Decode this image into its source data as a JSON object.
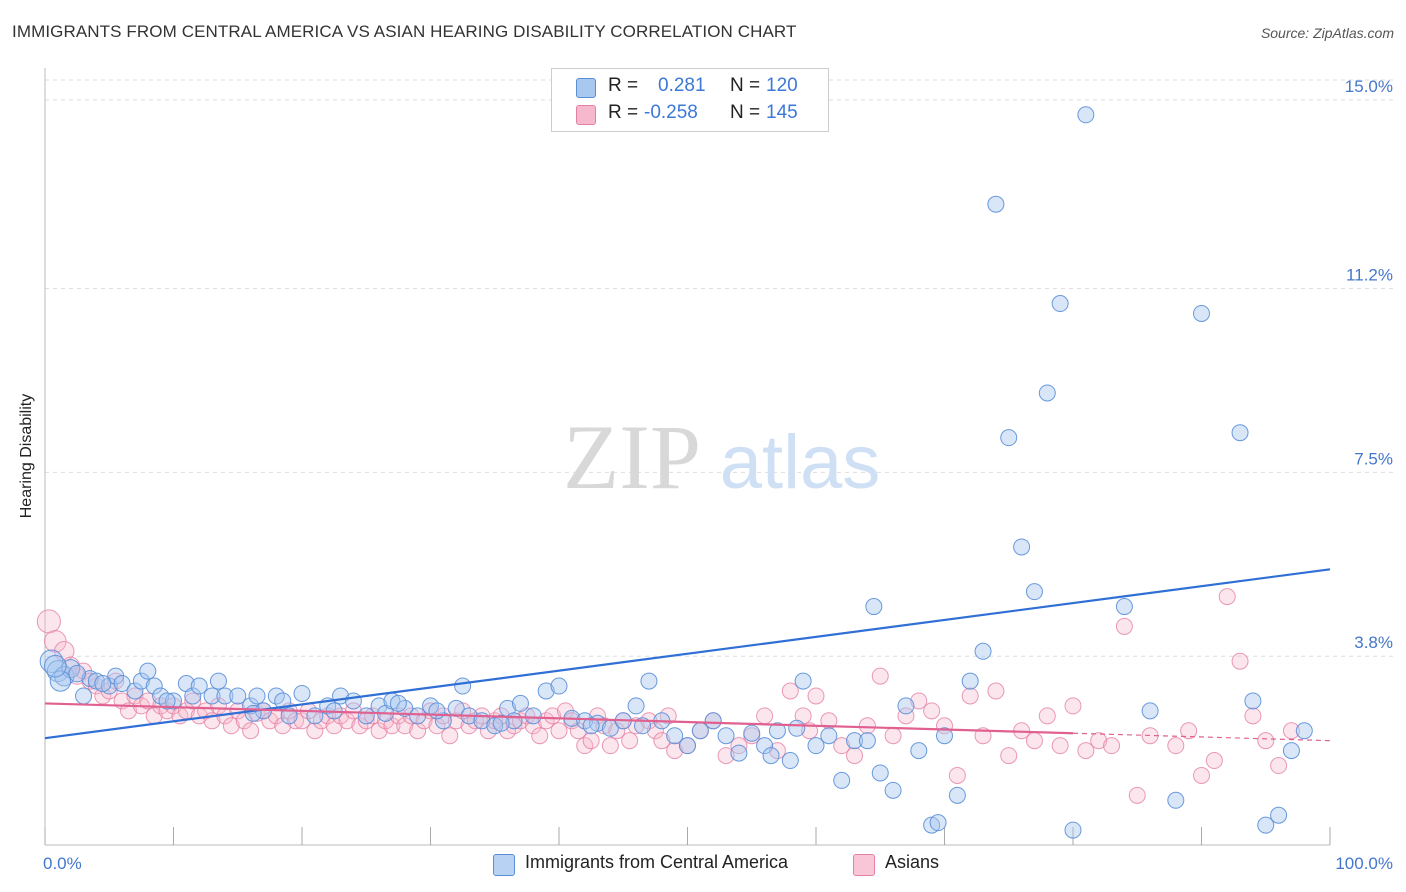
{
  "title": "IMMIGRANTS FROM CENTRAL AMERICA VS ASIAN HEARING DISABILITY CORRELATION CHART",
  "source": "Source: ZipAtlas.com",
  "watermark": {
    "zip": "ZIP",
    "atlas": "atlas"
  },
  "legend": {
    "series1": {
      "r_label": "R =",
      "r_value": "0.281",
      "n_label": "N =",
      "n_value": "120"
    },
    "series2": {
      "r_label": "R =",
      "r_value": "-0.258",
      "n_label": "N =",
      "n_value": "145"
    }
  },
  "colors": {
    "blue_fill": "#a8c8f0",
    "blue_stroke": "#5a8fd8",
    "blue_line": "#2f6fd6",
    "pink_fill": "#f5b8cc",
    "pink_stroke": "#e580a5",
    "pink_line": "#e0608f",
    "tick_text": "#4477cc",
    "grid": "#dddddd"
  },
  "chart_data": {
    "type": "scatter",
    "title": "IMMIGRANTS FROM CENTRAL AMERICA VS ASIAN HEARING DISABILITY CORRELATION CHART",
    "xlabel": "",
    "ylabel": "Hearing Disability",
    "x_tick_labels": [
      "0.0%",
      "100.0%"
    ],
    "y_tick_labels": [
      "3.8%",
      "7.5%",
      "11.2%",
      "15.0%"
    ],
    "y_ticks": [
      3.8,
      7.5,
      11.2,
      15.0
    ],
    "xlim": [
      0,
      100
    ],
    "ylim": [
      0,
      15.4
    ],
    "grid": true,
    "legend_position": "top-center",
    "series": [
      {
        "name": "Immigrants from Central America",
        "color": "#5a8fd8",
        "trend": {
          "x": [
            0,
            100
          ],
          "y": [
            2.15,
            5.55
          ]
        },
        "points": [
          [
            0.5,
            3.7
          ],
          [
            1,
            3.5
          ],
          [
            1.5,
            3.4
          ],
          [
            2,
            3.55
          ],
          [
            3,
            3.0
          ],
          [
            3.5,
            3.35
          ],
          [
            4,
            3.3
          ],
          [
            5,
            3.2
          ],
          [
            5.5,
            3.4
          ],
          [
            6,
            3.25
          ],
          [
            7,
            3.1
          ],
          [
            7.5,
            3.3
          ],
          [
            8,
            3.5
          ],
          [
            8.5,
            3.2
          ],
          [
            9,
            3.0
          ],
          [
            10,
            2.9
          ],
          [
            11,
            3.25
          ],
          [
            11.5,
            3.0
          ],
          [
            12,
            3.2
          ],
          [
            13,
            3.0
          ],
          [
            13.5,
            3.3
          ],
          [
            14,
            3.0
          ],
          [
            15,
            3.0
          ],
          [
            16,
            2.8
          ],
          [
            16.5,
            3.0
          ],
          [
            17,
            2.7
          ],
          [
            18,
            3.0
          ],
          [
            18.5,
            2.9
          ],
          [
            19,
            2.6
          ],
          [
            20,
            3.05
          ],
          [
            21,
            2.6
          ],
          [
            22,
            2.8
          ],
          [
            23,
            3.0
          ],
          [
            24,
            2.9
          ],
          [
            25,
            2.6
          ],
          [
            26,
            2.8
          ],
          [
            26.5,
            2.65
          ],
          [
            27,
            2.9
          ],
          [
            28,
            2.75
          ],
          [
            29,
            2.6
          ],
          [
            30,
            2.8
          ],
          [
            31,
            2.5
          ],
          [
            32,
            2.75
          ],
          [
            32.5,
            3.2
          ],
          [
            33,
            2.6
          ],
          [
            34,
            2.5
          ],
          [
            35,
            2.4
          ],
          [
            36,
            2.75
          ],
          [
            36.5,
            2.5
          ],
          [
            37,
            2.85
          ],
          [
            38,
            2.6
          ],
          [
            39,
            3.1
          ],
          [
            40,
            3.2
          ],
          [
            41,
            2.55
          ],
          [
            42,
            2.5
          ],
          [
            43,
            2.45
          ],
          [
            44,
            2.35
          ],
          [
            45,
            2.5
          ],
          [
            46,
            2.8
          ],
          [
            46.5,
            2.4
          ],
          [
            47,
            3.3
          ],
          [
            48,
            2.5
          ],
          [
            49,
            2.2
          ],
          [
            50,
            2.0
          ],
          [
            51,
            2.3
          ],
          [
            52,
            2.5
          ],
          [
            53,
            2.2
          ],
          [
            54,
            1.85
          ],
          [
            55,
            2.25
          ],
          [
            56,
            2.0
          ],
          [
            56.5,
            1.8
          ],
          [
            57,
            2.3
          ],
          [
            58,
            1.7
          ],
          [
            59,
            3.3
          ],
          [
            60,
            2.0
          ],
          [
            61,
            2.2
          ],
          [
            62,
            1.3
          ],
          [
            63,
            2.1
          ],
          [
            64,
            2.1
          ],
          [
            65,
            1.45
          ],
          [
            66,
            1.1
          ],
          [
            67,
            2.8
          ],
          [
            68,
            1.9
          ],
          [
            69,
            0.4
          ],
          [
            70,
            2.2
          ],
          [
            71,
            1.0
          ],
          [
            72,
            3.3
          ],
          [
            73,
            3.9
          ],
          [
            74,
            12.9
          ],
          [
            75,
            8.2
          ],
          [
            76,
            6.0
          ],
          [
            77,
            5.1
          ],
          [
            78,
            9.1
          ],
          [
            79,
            10.9
          ],
          [
            80,
            0.3
          ],
          [
            81,
            14.7
          ],
          [
            84,
            4.8
          ],
          [
            86,
            2.7
          ],
          [
            88,
            0.9
          ],
          [
            90,
            10.7
          ],
          [
            93,
            8.3
          ],
          [
            94,
            2.9
          ],
          [
            95,
            0.4
          ],
          [
            96,
            0.6
          ],
          [
            97,
            1.9
          ],
          [
            98,
            2.3
          ],
          [
            64.5,
            4.8
          ],
          [
            58.5,
            2.35
          ],
          [
            69.5,
            0.45
          ],
          [
            42.5,
            2.4
          ],
          [
            35.5,
            2.45
          ],
          [
            27.5,
            2.85
          ],
          [
            16.2,
            2.65
          ],
          [
            9.5,
            2.9
          ],
          [
            4.5,
            3.25
          ],
          [
            2.5,
            3.45
          ],
          [
            1.2,
            3.3
          ],
          [
            0.8,
            3.6
          ],
          [
            22.5,
            2.7
          ],
          [
            30.5,
            2.7
          ]
        ]
      },
      {
        "name": "Asians",
        "color": "#e580a5",
        "trend": {
          "x": [
            0,
            80
          ],
          "y": [
            2.85,
            2.25
          ]
        },
        "trend_dashed": {
          "x": [
            80,
            100
          ],
          "y": [
            2.25,
            2.1
          ]
        },
        "points": [
          [
            0.3,
            4.5
          ],
          [
            0.8,
            4.1
          ],
          [
            1.5,
            3.9
          ],
          [
            2,
            3.6
          ],
          [
            2.5,
            3.4
          ],
          [
            3,
            3.5
          ],
          [
            3.5,
            3.3
          ],
          [
            4,
            3.2
          ],
          [
            4.5,
            3.0
          ],
          [
            5,
            3.1
          ],
          [
            5.5,
            3.3
          ],
          [
            6,
            2.9
          ],
          [
            6.5,
            2.7
          ],
          [
            7,
            3.0
          ],
          [
            7.5,
            2.8
          ],
          [
            8,
            2.9
          ],
          [
            8.5,
            2.6
          ],
          [
            9,
            2.8
          ],
          [
            9.5,
            2.7
          ],
          [
            10,
            2.8
          ],
          [
            10.5,
            2.6
          ],
          [
            11,
            2.7
          ],
          [
            11.5,
            2.9
          ],
          [
            12,
            2.6
          ],
          [
            12.5,
            2.7
          ],
          [
            13,
            2.5
          ],
          [
            13.5,
            2.8
          ],
          [
            14,
            2.6
          ],
          [
            14.5,
            2.4
          ],
          [
            15,
            2.7
          ],
          [
            15.5,
            2.5
          ],
          [
            16,
            2.3
          ],
          [
            16.5,
            2.65
          ],
          [
            17,
            2.7
          ],
          [
            17.5,
            2.5
          ],
          [
            18,
            2.6
          ],
          [
            18.5,
            2.4
          ],
          [
            19,
            2.7
          ],
          [
            19.5,
            2.5
          ],
          [
            20,
            2.5
          ],
          [
            20.5,
            2.7
          ],
          [
            21,
            2.3
          ],
          [
            21.5,
            2.5
          ],
          [
            22,
            2.6
          ],
          [
            22.5,
            2.4
          ],
          [
            23,
            2.6
          ],
          [
            23.5,
            2.5
          ],
          [
            24,
            2.7
          ],
          [
            24.5,
            2.4
          ],
          [
            25,
            2.5
          ],
          [
            25.5,
            2.6
          ],
          [
            26,
            2.3
          ],
          [
            26.5,
            2.5
          ],
          [
            27,
            2.4
          ],
          [
            27.5,
            2.6
          ],
          [
            28,
            2.4
          ],
          [
            28.5,
            2.6
          ],
          [
            29,
            2.3
          ],
          [
            29.5,
            2.5
          ],
          [
            30,
            2.7
          ],
          [
            30.5,
            2.4
          ],
          [
            31,
            2.6
          ],
          [
            31.5,
            2.2
          ],
          [
            32,
            2.5
          ],
          [
            32.5,
            2.7
          ],
          [
            33,
            2.4
          ],
          [
            33.5,
            2.5
          ],
          [
            34,
            2.6
          ],
          [
            34.5,
            2.3
          ],
          [
            35,
            2.5
          ],
          [
            35.5,
            2.6
          ],
          [
            36,
            2.3
          ],
          [
            36.5,
            2.4
          ],
          [
            37,
            2.5
          ],
          [
            37.5,
            2.6
          ],
          [
            38,
            2.4
          ],
          [
            38.5,
            2.2
          ],
          [
            39,
            2.5
          ],
          [
            39.5,
            2.6
          ],
          [
            40,
            2.3
          ],
          [
            40.5,
            2.7
          ],
          [
            41,
            2.5
          ],
          [
            41.5,
            2.3
          ],
          [
            42,
            2.0
          ],
          [
            42.5,
            2.1
          ],
          [
            43,
            2.6
          ],
          [
            43.5,
            2.4
          ],
          [
            44,
            2.0
          ],
          [
            44.5,
            2.3
          ],
          [
            45,
            2.5
          ],
          [
            45.5,
            2.1
          ],
          [
            46,
            2.4
          ],
          [
            47,
            2.5
          ],
          [
            47.5,
            2.3
          ],
          [
            48,
            2.1
          ],
          [
            48.5,
            2.6
          ],
          [
            49,
            1.9
          ],
          [
            50,
            2.0
          ],
          [
            51,
            2.3
          ],
          [
            52,
            2.5
          ],
          [
            53,
            1.8
          ],
          [
            54,
            2.0
          ],
          [
            55,
            2.2
          ],
          [
            56,
            2.6
          ],
          [
            57,
            1.9
          ],
          [
            58,
            3.1
          ],
          [
            59,
            2.6
          ],
          [
            59.5,
            2.3
          ],
          [
            60,
            3.0
          ],
          [
            61,
            2.5
          ],
          [
            62,
            2.0
          ],
          [
            63,
            1.8
          ],
          [
            64,
            2.4
          ],
          [
            65,
            3.4
          ],
          [
            66,
            2.2
          ],
          [
            67,
            2.6
          ],
          [
            68,
            2.9
          ],
          [
            69,
            2.7
          ],
          [
            70,
            2.4
          ],
          [
            71,
            1.4
          ],
          [
            72,
            3.0
          ],
          [
            73,
            2.2
          ],
          [
            74,
            3.1
          ],
          [
            75,
            1.8
          ],
          [
            76,
            2.3
          ],
          [
            77,
            2.1
          ],
          [
            78,
            2.6
          ],
          [
            79,
            2.0
          ],
          [
            80,
            2.8
          ],
          [
            81,
            1.9
          ],
          [
            82,
            2.1
          ],
          [
            83,
            2.0
          ],
          [
            84,
            4.4
          ],
          [
            85,
            1.0
          ],
          [
            86,
            2.2
          ],
          [
            88,
            2.0
          ],
          [
            89,
            2.3
          ],
          [
            90,
            1.4
          ],
          [
            91,
            1.7
          ],
          [
            92,
            5.0
          ],
          [
            93,
            3.7
          ],
          [
            94,
            2.6
          ],
          [
            95,
            2.1
          ],
          [
            96,
            1.6
          ],
          [
            97,
            2.3
          ]
        ]
      }
    ]
  },
  "bottom_legend": [
    "Immigrants from Central America",
    "Asians"
  ]
}
